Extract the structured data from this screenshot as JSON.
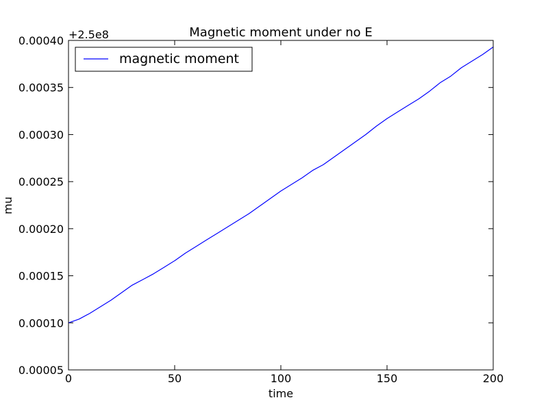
{
  "chart_data": {
    "type": "line",
    "title": "Magnetic moment under no E",
    "xlabel": "time",
    "ylabel": "mu",
    "offset_label": "+2.5e8",
    "xlim": [
      0,
      200
    ],
    "ylim": [
      5e-05,
      0.0004
    ],
    "x_ticks": [
      "0",
      "50",
      "100",
      "150",
      "200"
    ],
    "y_ticks": [
      "0.00005",
      "0.00010",
      "0.00015",
      "0.00020",
      "0.00025",
      "0.00030",
      "0.00035",
      "0.00040"
    ],
    "grid": false,
    "legend_position": "top-left",
    "series": [
      {
        "name": "magnetic moment",
        "color": "#0000ff",
        "x": [
          0,
          5,
          10,
          15,
          20,
          25,
          30,
          35,
          40,
          45,
          50,
          55,
          60,
          65,
          70,
          75,
          80,
          85,
          90,
          95,
          100,
          105,
          110,
          115,
          120,
          125,
          130,
          135,
          140,
          145,
          150,
          155,
          160,
          165,
          170,
          175,
          180,
          185,
          190,
          195,
          200
        ],
        "y": [
          0.0001,
          0.000104,
          0.00011,
          0.000117,
          0.000124,
          0.000132,
          0.00014,
          0.000146,
          0.000152,
          0.000159,
          0.000166,
          0.000174,
          0.000181,
          0.000188,
          0.000195,
          0.000202,
          0.000209,
          0.000216,
          0.000224,
          0.000232,
          0.00024,
          0.000247,
          0.000254,
          0.000262,
          0.000268,
          0.000276,
          0.000284,
          0.000292,
          0.0003,
          0.000309,
          0.000317,
          0.000324,
          0.000331,
          0.000338,
          0.000346,
          0.000355,
          0.000362,
          0.000371,
          0.000378,
          0.000385,
          0.000393
        ]
      }
    ]
  }
}
